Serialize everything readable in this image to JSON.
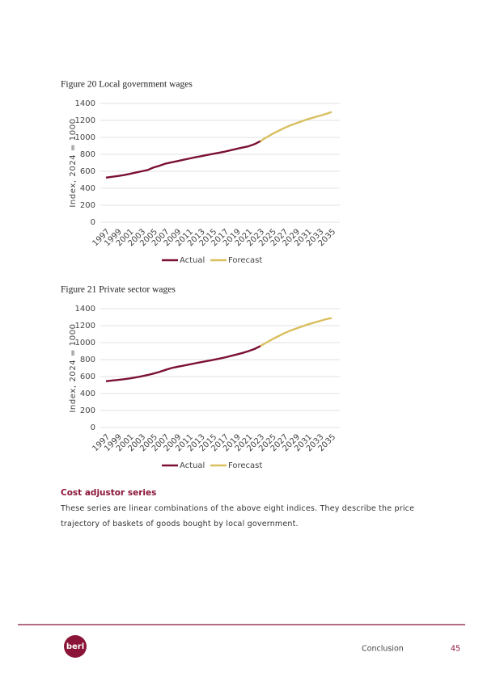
{
  "chart_data": [
    {
      "type": "line",
      "title": "Figure 20 Local government wages",
      "y_label": "Index, 2024 = 1000",
      "categories": [
        "1997",
        null,
        "1999",
        null,
        "2001",
        null,
        "2003",
        null,
        "2005",
        null,
        "2007",
        null,
        "2009",
        null,
        "2011",
        null,
        "2013",
        null,
        "2015",
        null,
        "2017",
        null,
        "2019",
        null,
        "2021",
        null,
        "2023",
        null,
        "2025",
        null,
        "2027",
        null,
        "2029",
        null,
        "2031",
        null,
        "2033",
        null,
        "2035"
      ],
      "series": [
        {
          "name": "Actual",
          "color": "#7b1034",
          "values": [
            525,
            535,
            545,
            555,
            570,
            585,
            600,
            615,
            645,
            665,
            690,
            705,
            720,
            735,
            750,
            765,
            778,
            792,
            805,
            818,
            832,
            848,
            865,
            880,
            895,
            920,
            955,
            null,
            null,
            null,
            null,
            null,
            null,
            null,
            null,
            null,
            null,
            null,
            null
          ]
        },
        {
          "name": "Forecast",
          "color": "#d9bf5e",
          "values": [
            null,
            null,
            null,
            null,
            null,
            null,
            null,
            null,
            null,
            null,
            null,
            null,
            null,
            null,
            null,
            null,
            null,
            null,
            null,
            null,
            null,
            null,
            null,
            null,
            null,
            null,
            955,
            1000,
            1040,
            1075,
            1110,
            1140,
            1165,
            1190,
            1215,
            1235,
            1255,
            1275,
            1300
          ]
        }
      ],
      "ylim": [
        0,
        1400
      ],
      "yticks": [
        0,
        200,
        400,
        600,
        800,
        1000,
        1200,
        1400
      ],
      "grid": true,
      "legend": "bottom"
    },
    {
      "type": "line",
      "title": "Figure 21 Private sector wages",
      "y_label": "Index, 2024 = 1000",
      "categories": [
        "1997",
        null,
        "1999",
        null,
        "2001",
        null,
        "2003",
        null,
        "2005",
        null,
        "2007",
        null,
        "2009",
        null,
        "2011",
        null,
        "2013",
        null,
        "2015",
        null,
        "2017",
        null,
        "2019",
        null,
        "2021",
        null,
        "2023",
        null,
        "2025",
        null,
        "2027",
        null,
        "2029",
        null,
        "2031",
        null,
        "2033",
        null,
        "2035"
      ],
      "series": [
        {
          "name": "Actual",
          "color": "#7b1034",
          "values": [
            545,
            553,
            560,
            568,
            578,
            590,
            603,
            618,
            635,
            655,
            678,
            700,
            715,
            728,
            742,
            756,
            770,
            783,
            796,
            810,
            825,
            842,
            860,
            878,
            900,
            925,
            960,
            null,
            null,
            null,
            null,
            null,
            null,
            null,
            null,
            null,
            null,
            null,
            null
          ]
        },
        {
          "name": "Forecast",
          "color": "#d9bf5e",
          "values": [
            null,
            null,
            null,
            null,
            null,
            null,
            null,
            null,
            null,
            null,
            null,
            null,
            null,
            null,
            null,
            null,
            null,
            null,
            null,
            null,
            null,
            null,
            null,
            null,
            null,
            null,
            960,
            1000,
            1040,
            1075,
            1110,
            1140,
            1165,
            1190,
            1215,
            1235,
            1255,
            1275,
            1290
          ]
        }
      ],
      "ylim": [
        0,
        1400
      ],
      "yticks": [
        0,
        200,
        400,
        600,
        800,
        1000,
        1200,
        1400
      ],
      "grid": true,
      "legend": "bottom"
    }
  ],
  "section": {
    "heading": "Cost adjustor series",
    "text": "These series are linear combinations of the above eight indices. They describe the price trajectory of baskets of goods bought by local government."
  },
  "footer": {
    "logo": "berl",
    "section": "Conclusion",
    "page": "45"
  }
}
